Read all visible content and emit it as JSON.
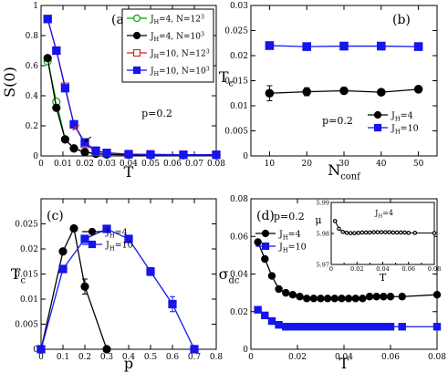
{
  "chart_data": [
    {
      "id": "a",
      "type": "line",
      "panel_label": "(a)",
      "xlabel": "T",
      "ylabel": "S(0)",
      "xlim": [
        0,
        0.08
      ],
      "ylim": [
        0,
        1
      ],
      "xticks": [
        "0",
        "0.01",
        "0.02",
        "0.03",
        "0.04",
        "0.05",
        "0.06",
        "0.07",
        "0.08"
      ],
      "yticks": [
        "0",
        "0.2",
        "0.4",
        "0.6",
        "0.8",
        "1"
      ],
      "annotations": [
        "p=0.2"
      ],
      "legend_position": "top-right",
      "series": [
        {
          "name": "J_H=4, N=12^3",
          "legend_main": "J",
          "legend_sub": "H",
          "legend_rest": "=4, N=12",
          "legend_sup": "3",
          "color": "#00aa00",
          "marker": "circle",
          "filled": false,
          "x": [
            0.003,
            0.007,
            0.011,
            0.015,
            0.02,
            0.025,
            0.03,
            0.04,
            0.05,
            0.065,
            0.08
          ],
          "y": [
            0.63,
            0.36,
            0.11,
            0.05,
            0.025,
            0.015,
            0.01,
            0.008,
            0.006,
            0.005,
            0.005
          ]
        },
        {
          "name": "J_H=4, N=10^3",
          "legend_main": "J",
          "legend_sub": "H",
          "legend_rest": "=4, N=10",
          "legend_sup": "3",
          "color": "#000000",
          "marker": "circle",
          "filled": true,
          "x": [
            0.003,
            0.007,
            0.011,
            0.015,
            0.02,
            0.025,
            0.03,
            0.04,
            0.05,
            0.065,
            0.08
          ],
          "y": [
            0.65,
            0.32,
            0.11,
            0.05,
            0.025,
            0.015,
            0.01,
            0.008,
            0.006,
            0.005,
            0.005
          ]
        },
        {
          "name": "J_H=10, N=12^3",
          "legend_main": "J",
          "legend_sub": "H",
          "legend_rest": "=10, N=12",
          "legend_sup": "3",
          "color": "#dd2222",
          "marker": "square",
          "filled": false,
          "x": [
            0.003,
            0.007,
            0.011,
            0.015,
            0.02,
            0.025,
            0.03,
            0.04,
            0.05,
            0.065,
            0.08
          ],
          "y": [
            0.91,
            0.7,
            0.46,
            0.21,
            0.08,
            0.03,
            0.02,
            0.012,
            0.01,
            0.008,
            0.008
          ]
        },
        {
          "name": "J_H=10, N=10^3",
          "legend_main": "J",
          "legend_sub": "H",
          "legend_rest": "=10, N=10",
          "legend_sup": "3",
          "color": "#1515ee",
          "marker": "square",
          "filled": true,
          "x": [
            0.003,
            0.007,
            0.011,
            0.015,
            0.02,
            0.025,
            0.03,
            0.04,
            0.05,
            0.065,
            0.08
          ],
          "y": [
            0.91,
            0.7,
            0.45,
            0.21,
            0.09,
            0.035,
            0.02,
            0.012,
            0.01,
            0.008,
            0.008
          ]
        }
      ]
    },
    {
      "id": "b",
      "type": "line",
      "panel_label": "(b)",
      "xlabel": "N",
      "xlabel_sub": "conf",
      "ylabel": "T",
      "ylabel_sub": "c",
      "xlim": [
        5,
        55
      ],
      "ylim": [
        0,
        0.03
      ],
      "xticks": [
        "10",
        "20",
        "30",
        "40",
        "50"
      ],
      "yticks": [
        "0",
        "0.005",
        "0.01",
        "0.015",
        "0.02",
        "0.025",
        "0.03"
      ],
      "annotations": [
        "p=0.2"
      ],
      "legend_position": "bottom-right",
      "series": [
        {
          "name": "J_H=4",
          "legend_main": "J",
          "legend_sub": "H",
          "legend_rest": "=4",
          "color": "#000000",
          "marker": "circle",
          "filled": true,
          "x": [
            10,
            20,
            30,
            40,
            50
          ],
          "y": [
            0.0125,
            0.0128,
            0.013,
            0.0127,
            0.0133
          ],
          "yerr": [
            0.0015,
            0.0008,
            0.0006,
            0.0003,
            0.0002
          ]
        },
        {
          "name": "J_H=10",
          "legend_main": "J",
          "legend_sub": "H",
          "legend_rest": "=10",
          "color": "#1515ee",
          "marker": "square",
          "filled": true,
          "x": [
            10,
            20,
            30,
            40,
            50
          ],
          "y": [
            0.022,
            0.0218,
            0.0219,
            0.0219,
            0.0218
          ]
        }
      ]
    },
    {
      "id": "c",
      "type": "line",
      "panel_label": "(c)",
      "xlabel": "p",
      "ylabel": "T",
      "ylabel_sub": "c",
      "xlim": [
        0,
        0.8
      ],
      "ylim": [
        0,
        0.03
      ],
      "xticks": [
        "0",
        "0.1",
        "0.2",
        "0.3",
        "0.4",
        "0.5",
        "0.6",
        "0.7",
        "0.8"
      ],
      "yticks": [
        "0",
        "0.005",
        "0.01",
        "0.015",
        "0.02",
        "0.025"
      ],
      "legend_position": "top-left",
      "series": [
        {
          "name": "J_H=4",
          "legend_main": "J",
          "legend_sub": "H",
          "legend_rest": "=4",
          "color": "#000000",
          "marker": "circle",
          "filled": true,
          "x": [
            0,
            0.1,
            0.15,
            0.2,
            0.3
          ],
          "y": [
            0,
            0.0195,
            0.0241,
            0.0125,
            0
          ],
          "yerr": [
            0,
            0,
            0,
            0.0015,
            0
          ]
        },
        {
          "name": "J_H=10",
          "legend_main": "J",
          "legend_sub": "H",
          "legend_rest": "=10",
          "color": "#1515ee",
          "marker": "square",
          "filled": true,
          "x": [
            0,
            0.1,
            0.2,
            0.3,
            0.4,
            0.5,
            0.6,
            0.7
          ],
          "y": [
            0,
            0.016,
            0.022,
            0.024,
            0.022,
            0.0155,
            0.009,
            0
          ],
          "yerr": [
            0,
            0,
            0,
            0,
            0,
            0.0008,
            0.0015,
            0
          ]
        }
      ]
    },
    {
      "id": "d",
      "type": "line",
      "panel_label": "(d)",
      "xlabel": "T",
      "ylabel": "σ",
      "ylabel_sub": "dc",
      "xlim": [
        0,
        0.08
      ],
      "ylim": [
        0,
        0.08
      ],
      "xticks": [
        "0",
        "0.02",
        "0.04",
        "0.06",
        "0.08"
      ],
      "yticks": [
        "0",
        "0.02",
        "0.04",
        "0.06",
        "0.08"
      ],
      "annotations": [
        "p=0.2"
      ],
      "legend_position": "top-left",
      "series": [
        {
          "name": "J_H=4",
          "legend_main": "J",
          "legend_sub": "H",
          "legend_rest": "=4",
          "color": "#000000",
          "marker": "circle",
          "filled": true,
          "x": [
            0.003,
            0.006,
            0.009,
            0.012,
            0.015,
            0.018,
            0.021,
            0.024,
            0.027,
            0.03,
            0.033,
            0.036,
            0.039,
            0.042,
            0.045,
            0.048,
            0.051,
            0.054,
            0.057,
            0.06,
            0.065,
            0.08
          ],
          "y": [
            0.057,
            0.048,
            0.039,
            0.032,
            0.03,
            0.029,
            0.028,
            0.027,
            0.027,
            0.027,
            0.027,
            0.027,
            0.027,
            0.027,
            0.027,
            0.027,
            0.028,
            0.028,
            0.028,
            0.028,
            0.028,
            0.029
          ]
        },
        {
          "name": "J_H=10",
          "legend_main": "J",
          "legend_sub": "H",
          "legend_rest": "=10",
          "color": "#1515ee",
          "marker": "square",
          "filled": true,
          "x": [
            0.003,
            0.006,
            0.009,
            0.012,
            0.015,
            0.018,
            0.021,
            0.024,
            0.027,
            0.03,
            0.033,
            0.036,
            0.039,
            0.042,
            0.045,
            0.048,
            0.051,
            0.054,
            0.057,
            0.06,
            0.065,
            0.08
          ],
          "y": [
            0.021,
            0.018,
            0.015,
            0.013,
            0.012,
            0.012,
            0.012,
            0.012,
            0.012,
            0.012,
            0.012,
            0.012,
            0.012,
            0.012,
            0.012,
            0.012,
            0.012,
            0.012,
            0.012,
            0.012,
            0.012,
            0.012
          ]
        }
      ],
      "inset": {
        "type": "line",
        "xlabel": "T",
        "ylabel": "μ",
        "annotation_main": "J",
        "annotation_sub": "H",
        "annotation_rest": "=4",
        "xlim": [
          0,
          0.08
        ],
        "ylim": [
          5.97,
          5.99
        ],
        "xticks": [
          "0",
          "0.02",
          "0.04",
          "0.06",
          "0.08"
        ],
        "xticks_minor": [
          "0.01",
          "0.03",
          "0.05",
          "0.07"
        ],
        "yticks": [
          "5.97",
          "5.98",
          "5.99"
        ],
        "series": [
          {
            "name": "J_H=4",
            "color": "#000000",
            "marker": "circle",
            "filled": false,
            "x": [
              0.003,
              0.006,
              0.009,
              0.012,
              0.015,
              0.018,
              0.021,
              0.024,
              0.027,
              0.03,
              0.033,
              0.036,
              0.039,
              0.042,
              0.045,
              0.048,
              0.051,
              0.054,
              0.057,
              0.06,
              0.065,
              0.08
            ],
            "y": [
              5.984,
              5.9815,
              5.9805,
              5.9802,
              5.9801,
              5.9801,
              5.9802,
              5.9803,
              5.9803,
              5.9803,
              5.9804,
              5.9804,
              5.9804,
              5.9804,
              5.9804,
              5.9803,
              5.9803,
              5.9803,
              5.9803,
              5.9802,
              5.9802,
              5.9801
            ]
          }
        ]
      }
    }
  ]
}
